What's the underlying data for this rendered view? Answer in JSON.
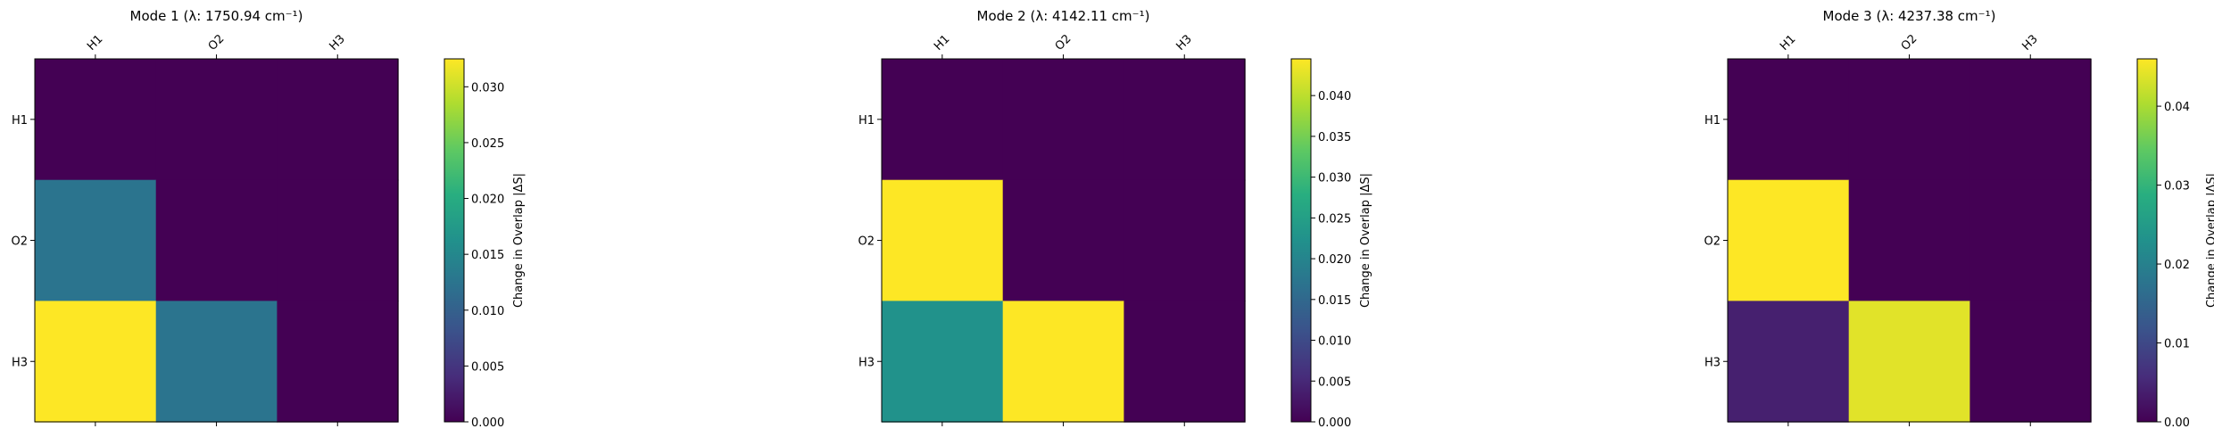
{
  "chart_data": [
    {
      "type": "heatmap",
      "title": "Mode 1 (λ: 1750.94 cm⁻¹)",
      "x_labels": [
        "H1",
        "O2",
        "H3"
      ],
      "y_labels": [
        "H1",
        "O2",
        "H3"
      ],
      "values": [
        [
          0.0,
          0.0,
          0.0
        ],
        [
          0.0125,
          0.0,
          0.0
        ],
        [
          0.0325,
          0.0125,
          0.0
        ]
      ],
      "colorbar": {
        "label": "Change in Overlap |ΔS|",
        "min": 0,
        "max": 0.0325,
        "ticks": [
          0,
          0.005,
          0.01,
          0.015,
          0.02,
          0.025,
          0.03
        ],
        "tick_labels": [
          "0.000",
          "0.005",
          "0.010",
          "0.015",
          "0.020",
          "0.025",
          "0.030"
        ]
      },
      "colormap": "viridis"
    },
    {
      "type": "heatmap",
      "title": "Mode 2 (λ: 4142.11 cm⁻¹)",
      "x_labels": [
        "H1",
        "O2",
        "H3"
      ],
      "y_labels": [
        "H1",
        "O2",
        "H3"
      ],
      "values": [
        [
          0.0,
          0.0,
          0.0
        ],
        [
          0.0445,
          0.0,
          0.0
        ],
        [
          0.0225,
          0.0445,
          0.0
        ]
      ],
      "colorbar": {
        "label": "Change in Overlap |ΔS|",
        "min": 0,
        "max": 0.0445,
        "ticks": [
          0,
          0.005,
          0.01,
          0.015,
          0.02,
          0.025,
          0.03,
          0.035,
          0.04
        ],
        "tick_labels": [
          "0.000",
          "0.005",
          "0.010",
          "0.015",
          "0.020",
          "0.025",
          "0.030",
          "0.035",
          "0.040"
        ]
      },
      "colormap": "viridis"
    },
    {
      "type": "heatmap",
      "title": "Mode 3 (λ: 4237.38 cm⁻¹)",
      "x_labels": [
        "H1",
        "O2",
        "H3"
      ],
      "y_labels": [
        "H1",
        "O2",
        "H3"
      ],
      "values": [
        [
          0.0,
          0.0,
          0.0
        ],
        [
          0.046,
          0.0,
          0.0
        ],
        [
          0.004,
          0.044,
          0.0
        ]
      ],
      "colorbar": {
        "label": "Change in Overlap |ΔS|",
        "min": 0,
        "max": 0.046,
        "ticks": [
          0,
          0.01,
          0.02,
          0.03,
          0.04
        ],
        "tick_labels": [
          "0.00",
          "0.01",
          "0.02",
          "0.03",
          "0.04"
        ]
      },
      "colormap": "viridis"
    }
  ]
}
